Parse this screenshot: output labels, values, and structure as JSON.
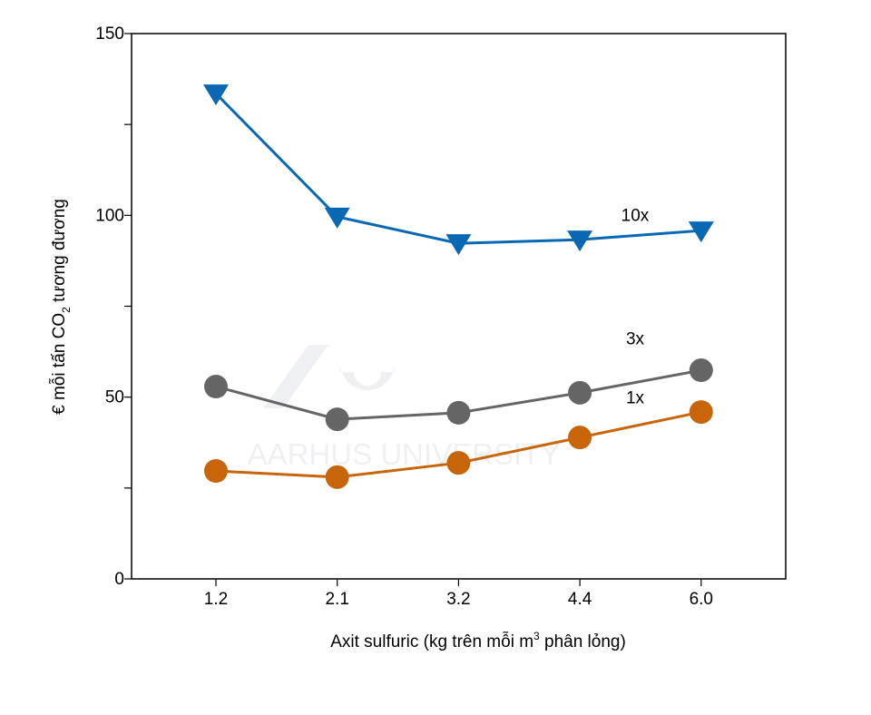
{
  "watermark": "AARHUS UNIVERSITY",
  "chart_data": {
    "type": "line",
    "title": "",
    "xlabel": "Axit sulfuric (kg trên mỗi m³ phân lỏng)",
    "xlabel_parts": {
      "main": "Axit sulfuric (kg trên mỗi m",
      "sup": "3",
      "tail": " phân lỏng)"
    },
    "ylabel": "€ mỗi tấn CO₂ tương đương",
    "ylabel_parts": {
      "main": "€ mỗi tấn CO",
      "sub": "2",
      "tail": " tương đương"
    },
    "categories": [
      "1.2",
      "2.1",
      "3.2",
      "4.4",
      "6.0"
    ],
    "ylim": [
      0,
      150
    ],
    "yticks": [
      0,
      50,
      100,
      150
    ],
    "yminor_ticks": [
      25,
      75,
      125
    ],
    "grid": false,
    "series": [
      {
        "name": "10x",
        "values": [
          133.5,
          99.6,
          92.3,
          93.3,
          95.8
        ],
        "color": "#0868b4",
        "marker": "triangle-down"
      },
      {
        "name": "3x",
        "values": [
          52.9,
          43.9,
          45.7,
          51.2,
          57.4
        ],
        "color": "#656565",
        "marker": "circle"
      },
      {
        "name": "1x",
        "values": [
          29.7,
          28.0,
          31.9,
          38.9,
          45.9
        ],
        "color": "#c8640a",
        "marker": "circle"
      }
    ],
    "series_label_positions": {
      "10x": 98.5,
      "3x": 64.5,
      "1x": 48.3
    }
  }
}
